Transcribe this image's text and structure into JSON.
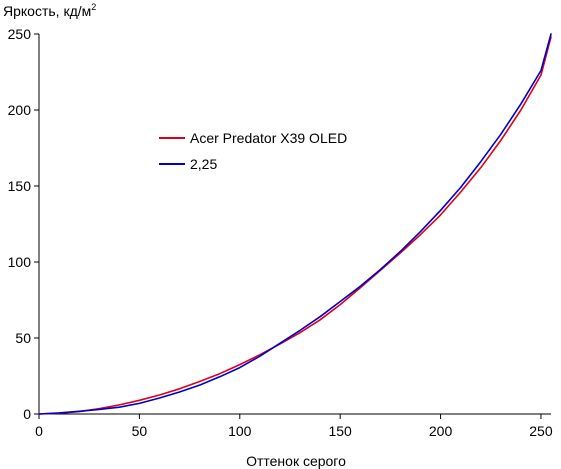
{
  "chart_data": {
    "type": "line",
    "title": "",
    "xlabel": "Оттенок серого",
    "ylabel": {
      "base": "Яркость, кд/м",
      "sup": "2"
    },
    "xlim": [
      0,
      255
    ],
    "ylim": [
      0,
      250
    ],
    "xticks": [
      0,
      50,
      100,
      150,
      200,
      250
    ],
    "yticks": [
      0,
      50,
      100,
      150,
      200,
      250
    ],
    "xtick_labels": [
      "0",
      "50",
      "100",
      "150",
      "200",
      "250"
    ],
    "ytick_labels": [
      "0",
      "50",
      "100",
      "150",
      "200",
      "250"
    ],
    "grid": false,
    "legend_position": "upper-left-inside",
    "series": [
      {
        "name": "Acer Predator X39 OLED",
        "color": "#e0001b",
        "x": [
          0,
          10,
          20,
          30,
          40,
          50,
          60,
          70,
          80,
          90,
          100,
          110,
          120,
          130,
          140,
          150,
          160,
          170,
          180,
          190,
          200,
          210,
          220,
          230,
          240,
          250,
          255
        ],
        "y": [
          0,
          0.5,
          1.6,
          3.5,
          6.0,
          9.0,
          12.5,
          16.6,
          21.4,
          26.5,
          32.5,
          39.0,
          46.0,
          53.5,
          62.0,
          72.0,
          83.0,
          94.5,
          106.0,
          118.0,
          131.0,
          146.0,
          162.0,
          180.0,
          200.0,
          223.0,
          248.0
        ]
      },
      {
        "name": "2,25",
        "color": "#0000cc",
        "x": [
          0,
          10,
          20,
          30,
          40,
          50,
          60,
          70,
          80,
          90,
          100,
          110,
          120,
          130,
          140,
          150,
          160,
          170,
          180,
          190,
          200,
          210,
          220,
          230,
          240,
          250,
          255
        ],
        "y": [
          0,
          0.7,
          1.8,
          3.0,
          4.5,
          7.0,
          10.5,
          14.5,
          19.0,
          24.5,
          30.5,
          38.0,
          46.5,
          55.0,
          64.0,
          74.0,
          84.0,
          95.0,
          107.0,
          120.0,
          134.0,
          149.0,
          166.0,
          184.0,
          204.0,
          226.0,
          250.0
        ]
      }
    ]
  }
}
